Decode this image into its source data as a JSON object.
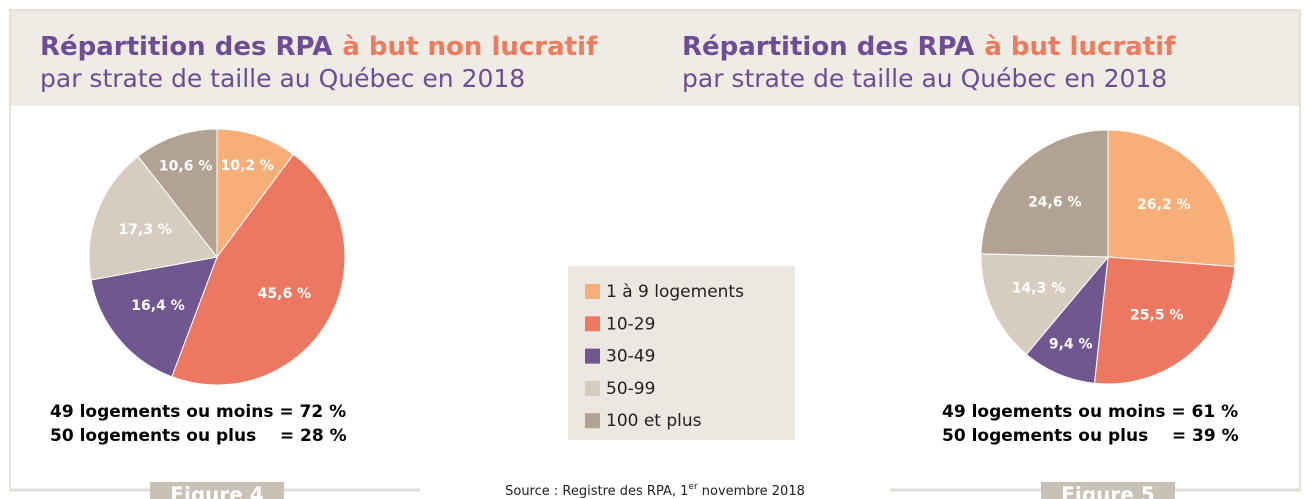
{
  "chart_data": [
    {
      "type": "pie",
      "title_parts": [
        "Répartition des RPA",
        "à but non lucratif"
      ],
      "subtitle": "par strate de taille au Québec en 2018",
      "values": [
        10.2,
        45.6,
        16.4,
        17.3,
        10.6
      ],
      "value_labels": [
        "10,2 %",
        "45,6 %",
        "16,4 %",
        "17,3 %",
        "10,6 %"
      ],
      "summary": [
        "49 logements ou moins = 72 %",
        "50 logements ou plus    = 28 %"
      ],
      "figure": "Figure 4"
    },
    {
      "type": "pie",
      "title_parts": [
        "Répartition des RPA",
        "à but lucratif"
      ],
      "subtitle": "par strate de taille au Québec en 2018",
      "values": [
        26.2,
        25.5,
        9.4,
        14.3,
        24.6
      ],
      "value_labels": [
        "26,2 %",
        "25,5 %",
        "9,4 %",
        "14,3 %",
        "24,6 %"
      ],
      "summary": [
        "49 logements ou moins = 61 %",
        "50 logements ou plus    = 39 %"
      ],
      "figure": "Figure 5"
    }
  ],
  "legend": {
    "categories": [
      "1 à 9 logements",
      "10-29",
      "30-49",
      "50-99",
      "100 et plus"
    ],
    "colors": [
      "#f7ae78",
      "#ec7862",
      "#70578f",
      "#d6cdc0",
      "#b1a293"
    ]
  },
  "source": {
    "before": "Source : Registre des RPA, 1",
    "sup": "er",
    "after": " novembre 2018"
  }
}
